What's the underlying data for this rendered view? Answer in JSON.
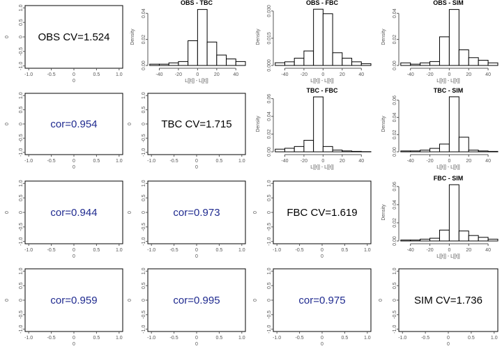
{
  "colors": {
    "correlation_text": "#1f2a8f",
    "cv_text": "#000000",
    "axis": "#555555"
  },
  "empty_axis": {
    "ticks": [
      "-1.0",
      "-0.5",
      "0",
      "0.5",
      "1.0"
    ],
    "xlabel": "0",
    "ylabel": "0"
  },
  "hist_axis": {
    "x_ticks": [
      "-40",
      "-20",
      "0",
      "20",
      "40"
    ],
    "xlabel": "L[[t]] - L[[t]]",
    "ylabel": "Density"
  },
  "chart_data": [
    {
      "type": "text",
      "row": 0,
      "col": 0,
      "text": "OBS CV=1.524",
      "kind": "cv"
    },
    {
      "type": "bar",
      "row": 0,
      "col": 1,
      "title": "OBS - TBC",
      "bin_edges": [
        -50,
        -40,
        -30,
        -20,
        -10,
        0,
        10,
        20,
        30,
        40,
        50
      ],
      "values": [
        0.001,
        0.001,
        0.002,
        0.003,
        0.019,
        0.043,
        0.018,
        0.008,
        0.005,
        0.003
      ],
      "ylim": [
        0,
        0.046
      ],
      "y_ticks": [
        "0.00",
        "0.02",
        "0.04"
      ]
    },
    {
      "type": "bar",
      "row": 0,
      "col": 2,
      "title": "OBS - FBC",
      "bin_edges": [
        -50,
        -40,
        -30,
        -20,
        -10,
        0,
        10,
        20,
        30,
        40,
        50
      ],
      "values": [
        0.0015,
        0.002,
        0.004,
        0.008,
        0.031,
        0.0285,
        0.007,
        0.004,
        0.002,
        0.001
      ],
      "ylim": [
        0,
        0.033
      ],
      "y_ticks": [
        "0.000",
        "0.015",
        "0.030"
      ]
    },
    {
      "type": "bar",
      "row": 0,
      "col": 3,
      "title": "OBS - SIM",
      "bin_edges": [
        -50,
        -40,
        -30,
        -20,
        -10,
        0,
        10,
        20,
        30,
        40,
        50
      ],
      "values": [
        0.002,
        0.001,
        0.002,
        0.003,
        0.022,
        0.043,
        0.012,
        0.006,
        0.004,
        0.002
      ],
      "ylim": [
        0,
        0.046
      ],
      "y_ticks": [
        "0.00",
        "0.02",
        "0.04"
      ]
    },
    {
      "type": "text",
      "row": 1,
      "col": 0,
      "text": "cor=0.954",
      "kind": "cor"
    },
    {
      "type": "text",
      "row": 1,
      "col": 1,
      "text": "TBC CV=1.715",
      "kind": "cv"
    },
    {
      "type": "bar",
      "row": 1,
      "col": 2,
      "title": "TBC - FBC",
      "bin_edges": [
        -50,
        -40,
        -30,
        -20,
        -10,
        0,
        10,
        20,
        30,
        40,
        50
      ],
      "values": [
        0.003,
        0.004,
        0.006,
        0.013,
        0.062,
        0.006,
        0.002,
        0.001,
        0.0005,
        0.0002
      ],
      "ylim": [
        0,
        0.066
      ],
      "y_ticks": [
        "0.00",
        "0.02",
        "0.04",
        "0.06"
      ]
    },
    {
      "type": "bar",
      "row": 1,
      "col": 3,
      "title": "TBC - SIM",
      "bin_edges": [
        -50,
        -40,
        -30,
        -20,
        -10,
        0,
        10,
        20,
        30,
        40,
        50
      ],
      "values": [
        0.001,
        0.001,
        0.002,
        0.004,
        0.009,
        0.064,
        0.017,
        0.002,
        0.001,
        0.0005
      ],
      "ylim": [
        0,
        0.068
      ],
      "y_ticks": [
        "0.00",
        "0.02",
        "0.04",
        "0.06"
      ]
    },
    {
      "type": "text",
      "row": 2,
      "col": 0,
      "text": "cor=0.944",
      "kind": "cor"
    },
    {
      "type": "text",
      "row": 2,
      "col": 1,
      "text": "cor=0.973",
      "kind": "cor"
    },
    {
      "type": "text",
      "row": 2,
      "col": 2,
      "text": "FBC CV=1.619",
      "kind": "cv"
    },
    {
      "type": "bar",
      "row": 2,
      "col": 3,
      "title": "FBC - SIM",
      "bin_edges": [
        -50,
        -40,
        -30,
        -20,
        -10,
        0,
        10,
        20,
        30,
        40,
        50
      ],
      "values": [
        0.001,
        0.001,
        0.002,
        0.003,
        0.012,
        0.062,
        0.011,
        0.006,
        0.004,
        0.002
      ],
      "ylim": [
        0,
        0.066
      ],
      "y_ticks": [
        "0.00",
        "0.02",
        "0.04",
        "0.06"
      ]
    },
    {
      "type": "text",
      "row": 3,
      "col": 0,
      "text": "cor=0.959",
      "kind": "cor"
    },
    {
      "type": "text",
      "row": 3,
      "col": 1,
      "text": "cor=0.995",
      "kind": "cor"
    },
    {
      "type": "text",
      "row": 3,
      "col": 2,
      "text": "cor=0.975",
      "kind": "cor"
    },
    {
      "type": "text",
      "row": 3,
      "col": 3,
      "text": "SIM CV=1.736",
      "kind": "cv"
    }
  ]
}
